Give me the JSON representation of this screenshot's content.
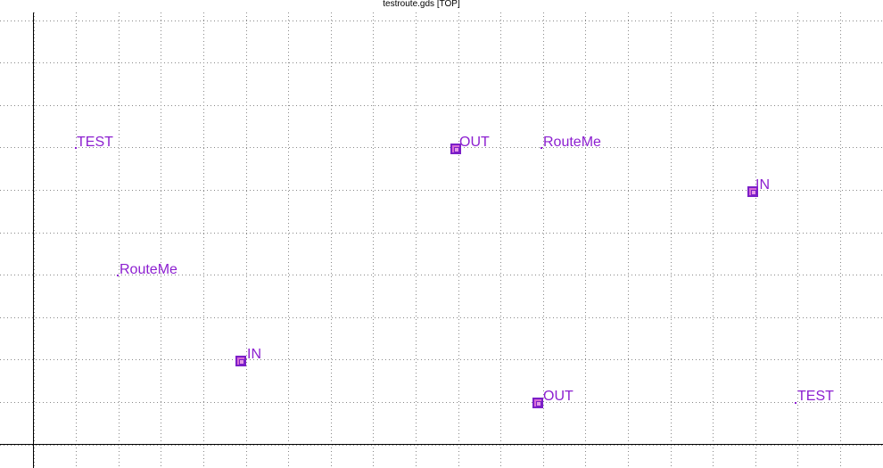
{
  "window": {
    "title": "testroute.gds [TOP]"
  },
  "labels": [
    {
      "id": "test-1",
      "text": "TEST"
    },
    {
      "id": "out-1",
      "text": "OUT"
    },
    {
      "id": "routeme-1",
      "text": "RouteMe"
    },
    {
      "id": "in-1",
      "text": "IN"
    },
    {
      "id": "routeme-2",
      "text": "RouteMe"
    },
    {
      "id": "in-2",
      "text": "IN"
    },
    {
      "id": "out-2",
      "text": "OUT"
    },
    {
      "id": "test-2",
      "text": "TEST"
    }
  ],
  "colors": {
    "label": "#8c1fd0",
    "pin_fill": "#d66ad6",
    "pin_border": "#7b1fc8",
    "grid_dot": "#888888",
    "axis": "#000000"
  }
}
